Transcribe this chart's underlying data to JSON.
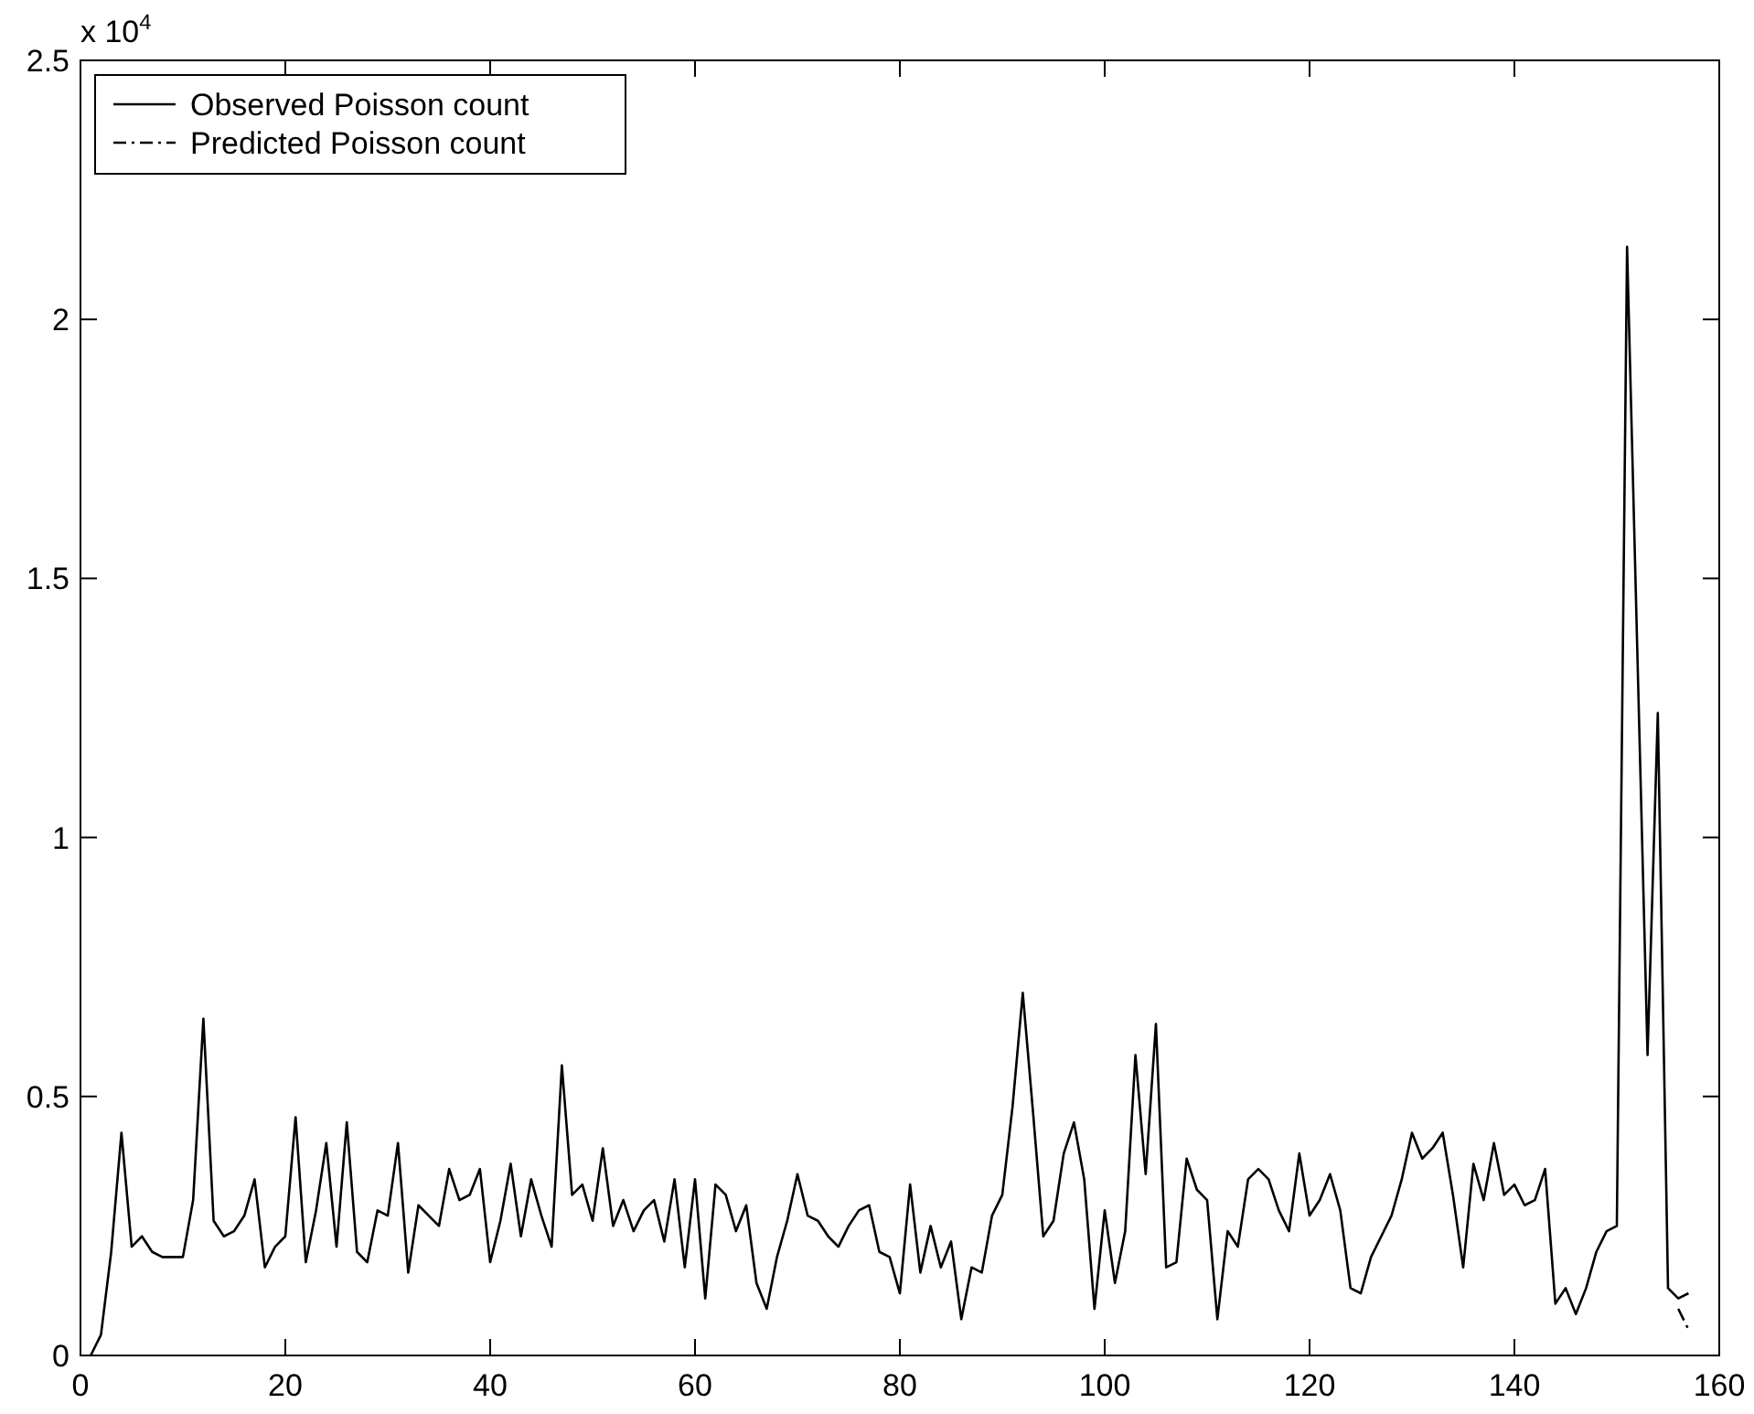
{
  "chart_data": {
    "type": "line",
    "x": [
      1,
      2,
      3,
      4,
      5,
      6,
      7,
      8,
      9,
      10,
      11,
      12,
      13,
      14,
      15,
      16,
      17,
      18,
      19,
      20,
      21,
      22,
      23,
      24,
      25,
      26,
      27,
      28,
      29,
      30,
      31,
      32,
      33,
      34,
      35,
      36,
      37,
      38,
      39,
      40,
      41,
      42,
      43,
      44,
      45,
      46,
      47,
      48,
      49,
      50,
      51,
      52,
      53,
      54,
      55,
      56,
      57,
      58,
      59,
      60,
      61,
      62,
      63,
      64,
      65,
      66,
      67,
      68,
      69,
      70,
      71,
      72,
      73,
      74,
      75,
      76,
      77,
      78,
      79,
      80,
      81,
      82,
      83,
      84,
      85,
      86,
      87,
      88,
      89,
      90,
      91,
      92,
      93,
      94,
      95,
      96,
      97,
      98,
      99,
      100,
      101,
      102,
      103,
      104,
      105,
      106,
      107,
      108,
      109,
      110,
      111,
      112,
      113,
      114,
      115,
      116,
      117,
      118,
      119,
      120,
      121,
      122,
      123,
      124,
      125,
      126,
      127,
      128,
      129,
      130,
      131,
      132,
      133,
      134,
      135,
      136,
      137,
      138,
      139,
      140,
      141,
      142,
      143,
      144,
      145,
      146,
      147,
      148,
      149,
      150,
      151,
      152,
      153,
      154,
      155,
      156,
      157
    ],
    "series": [
      {
        "name": "Observed Poisson count",
        "color": "#000000",
        "line_style": "solid",
        "values": [
          0,
          0.04,
          0.2,
          0.43,
          0.21,
          0.23,
          0.2,
          0.19,
          0.19,
          0.19,
          0.3,
          0.65,
          0.26,
          0.23,
          0.24,
          0.27,
          0.34,
          0.17,
          0.21,
          0.23,
          0.46,
          0.18,
          0.28,
          0.41,
          0.21,
          0.45,
          0.2,
          0.18,
          0.28,
          0.27,
          0.41,
          0.16,
          0.29,
          0.27,
          0.25,
          0.36,
          0.3,
          0.31,
          0.36,
          0.18,
          0.26,
          0.37,
          0.23,
          0.34,
          0.27,
          0.21,
          0.56,
          0.31,
          0.33,
          0.26,
          0.4,
          0.25,
          0.3,
          0.24,
          0.28,
          0.3,
          0.22,
          0.34,
          0.17,
          0.34,
          0.11,
          0.33,
          0.31,
          0.24,
          0.29,
          0.14,
          0.09,
          0.19,
          0.26,
          0.35,
          0.27,
          0.26,
          0.23,
          0.21,
          0.25,
          0.28,
          0.29,
          0.2,
          0.19,
          0.12,
          0.33,
          0.16,
          0.25,
          0.17,
          0.22,
          0.07,
          0.17,
          0.16,
          0.27,
          0.31,
          0.48,
          0.7,
          0.47,
          0.23,
          0.26,
          0.39,
          0.45,
          0.34,
          0.09,
          0.28,
          0.14,
          0.24,
          0.58,
          0.35,
          0.64,
          0.17,
          0.18,
          0.38,
          0.32,
          0.3,
          0.07,
          0.24,
          0.21,
          0.34,
          0.36,
          0.34,
          0.28,
          0.24,
          0.39,
          0.27,
          0.3,
          0.35,
          0.28,
          0.13,
          0.12,
          0.19,
          0.23,
          0.27,
          0.34,
          0.43,
          0.38,
          0.4,
          0.43,
          0.31,
          0.17,
          0.37,
          0.3,
          0.41,
          0.31,
          0.33,
          0.29,
          0.3,
          0.36,
          0.1,
          0.13,
          0.08,
          0.13,
          0.2,
          0.24,
          0.25,
          2.14,
          1.36,
          0.58,
          1.24,
          0.13,
          0.11,
          0.12
        ]
      },
      {
        "name": "Predicted Poisson count",
        "color": "#000000",
        "line_style": "dashed",
        "values": [
          null,
          null,
          null,
          null,
          null,
          null,
          null,
          null,
          null,
          null,
          null,
          null,
          null,
          null,
          null,
          null,
          null,
          null,
          null,
          null,
          null,
          null,
          null,
          null,
          null,
          null,
          null,
          null,
          null,
          null,
          null,
          null,
          null,
          null,
          null,
          null,
          null,
          null,
          null,
          null,
          null,
          null,
          null,
          null,
          null,
          null,
          null,
          null,
          null,
          null,
          null,
          null,
          null,
          null,
          null,
          null,
          null,
          null,
          null,
          null,
          null,
          null,
          null,
          null,
          null,
          null,
          null,
          null,
          null,
          null,
          null,
          null,
          null,
          null,
          null,
          null,
          null,
          null,
          null,
          null,
          null,
          null,
          null,
          null,
          null,
          null,
          null,
          null,
          null,
          null,
          null,
          null,
          null,
          null,
          null,
          null,
          null,
          null,
          null,
          null,
          null,
          null,
          null,
          null,
          null,
          null,
          null,
          null,
          null,
          null,
          null,
          null,
          null,
          null,
          null,
          null,
          null,
          null,
          null,
          null,
          null,
          null,
          null,
          null,
          null,
          null,
          null,
          null,
          null,
          null,
          null,
          null,
          null,
          null,
          null,
          null,
          null,
          null,
          null,
          null,
          null,
          null,
          null,
          null,
          null,
          null,
          null,
          null,
          null,
          null,
          null,
          null,
          null,
          null,
          null,
          0.09,
          0.05
        ]
      }
    ],
    "xlim": [
      0,
      160
    ],
    "xticks": [
      0,
      20,
      40,
      60,
      80,
      100,
      120,
      140,
      160
    ],
    "ylim": [
      0,
      2.5
    ],
    "yticks": [
      0,
      0.5,
      1,
      1.5,
      2,
      2.5
    ],
    "annotations": [
      "x 10$^{4}$"
    ],
    "legend": "top left",
    "grid": false
  }
}
